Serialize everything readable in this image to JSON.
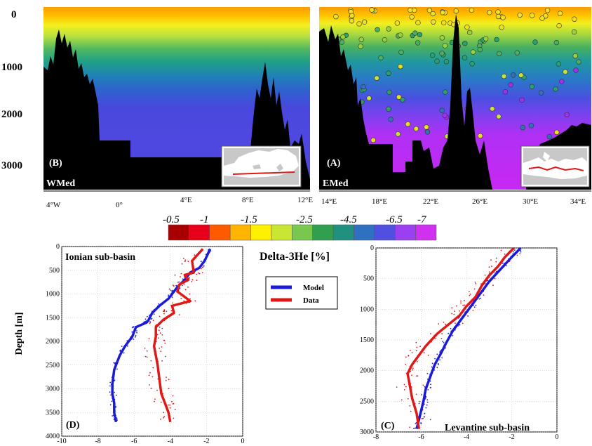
{
  "colorbar": {
    "title": "Delta-3He [%]",
    "labels": [
      "-0.5",
      "-1",
      "-1.5",
      "-2.5",
      "-4.5",
      "-6.5",
      "-7"
    ],
    "colors": [
      "#a80000",
      "#e8001a",
      "#ff5a00",
      "#ffb400",
      "#fff000",
      "#c8e632",
      "#78c850",
      "#30a050",
      "#209080",
      "#3070c0",
      "#5050e0",
      "#9a40f0",
      "#d030f0"
    ]
  },
  "sections": {
    "depth_ticks": [
      "0",
      "1000",
      "2000",
      "3000"
    ],
    "west": {
      "tag": "(B)",
      "name": "WMed",
      "lon_ticks": [
        "4°W",
        "0°",
        "4°E",
        "8°E",
        "12°E"
      ]
    },
    "east": {
      "tag": "(A)",
      "name": "EMed",
      "lon_ticks": [
        "14°E",
        "18°E",
        "22°E",
        "26°E",
        "30°E",
        "34°E"
      ]
    }
  },
  "profiles": {
    "ylabel": "Depth [m]",
    "legend": [
      {
        "label": "Model",
        "color": "#1a1ad8"
      },
      {
        "label": "Data",
        "color": "#e01818"
      }
    ]
  },
  "chart_data": [
    {
      "type": "area",
      "title": "(D) Ionian sub-basin",
      "ylabel": "Depth [m]",
      "xlim": [
        -10,
        0
      ],
      "ylim": [
        4000,
        0
      ],
      "x_ticks": [
        "-10",
        "-8",
        "-6",
        "-4",
        "-2",
        "0"
      ],
      "y_ticks": [
        "0",
        "500",
        "1000",
        "1500",
        "2000",
        "2500",
        "3000",
        "3500",
        "4000"
      ],
      "series": [
        {
          "name": "Model",
          "color": "#1a1ad8",
          "x": [
            -1.8,
            -2.1,
            -2.4,
            -2.9,
            -3.2,
            -3.6,
            -3.8,
            -4.1,
            -4.6,
            -5.0,
            -5.2,
            -5.3,
            -5.9,
            -6.1,
            -6.5,
            -6.8,
            -7.1,
            -7.2,
            -7.2,
            -7.1,
            -7.1,
            -7.0
          ],
          "depth": [
            50,
            300,
            450,
            550,
            700,
            850,
            950,
            1100,
            1250,
            1400,
            1550,
            1600,
            1700,
            1900,
            2100,
            2300,
            2600,
            2900,
            3100,
            3300,
            3500,
            3700
          ]
        },
        {
          "name": "Data",
          "color": "#e01818",
          "x": [
            -2.2,
            -2.8,
            -2.7,
            -3.2,
            -3.0,
            -3.5,
            -3.6,
            -2.9,
            -3.9,
            -3.8,
            -4.4,
            -4.8,
            -4.8,
            -4.9,
            -4.8,
            -4.7,
            -4.6,
            -4.5,
            -4.3,
            -4.1,
            -4.0
          ],
          "depth": [
            50,
            300,
            550,
            600,
            700,
            800,
            950,
            1150,
            1250,
            1400,
            1550,
            1700,
            1900,
            2100,
            2300,
            2500,
            2800,
            3100,
            3300,
            3500,
            3700
          ]
        }
      ]
    },
    {
      "type": "area",
      "title": "(C) Levantine sub-basin",
      "xlim": [
        -8,
        0
      ],
      "ylim": [
        3000,
        0
      ],
      "x_ticks": [
        "-8",
        "-6",
        "-4",
        "-2",
        "0"
      ],
      "y_ticks": [
        "0",
        "500",
        "1000",
        "1500",
        "2000",
        "2500",
        "3000"
      ],
      "series": [
        {
          "name": "Model",
          "color": "#1a1ad8",
          "x": [
            -1.6,
            -2.0,
            -2.5,
            -3.0,
            -3.4,
            -3.8,
            -4.2,
            -4.6,
            -4.9,
            -5.1,
            -5.4,
            -5.6,
            -5.8,
            -5.9,
            -6.0,
            -6.1,
            -6.2
          ],
          "depth": [
            0,
            150,
            350,
            550,
            750,
            950,
            1150,
            1350,
            1550,
            1700,
            1900,
            2100,
            2300,
            2500,
            2650,
            2800,
            2950
          ]
        },
        {
          "name": "Data",
          "color": "#e01818",
          "x": [
            -1.9,
            -2.3,
            -2.6,
            -3.0,
            -3.3,
            -3.6,
            -4.0,
            -4.3,
            -4.8,
            -5.3,
            -5.8,
            -6.1,
            -6.4,
            -6.6,
            -6.5,
            -6.4,
            -6.2,
            -6.1
          ],
          "depth": [
            0,
            150,
            300,
            450,
            600,
            800,
            950,
            1100,
            1250,
            1400,
            1600,
            1750,
            1900,
            2050,
            2250,
            2450,
            2700,
            2950
          ]
        }
      ]
    }
  ]
}
